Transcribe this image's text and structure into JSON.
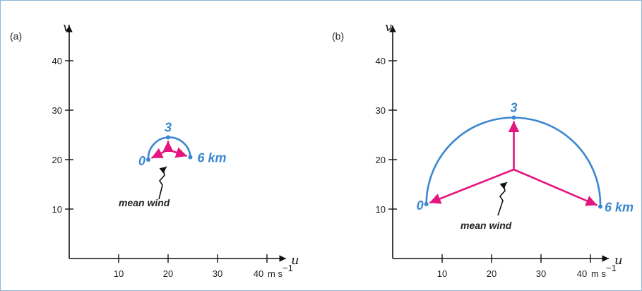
{
  "colors": {
    "hodograph": "#3a87cf",
    "shear_vector": "#e5157f",
    "axis": "#111111",
    "frame": "#8fb6d9"
  },
  "chart_data": [
    {
      "type": "hodograph",
      "panel_label": "(a)",
      "xaxis_letter": "u",
      "yaxis_letter": "v",
      "x_ticks": [
        "10",
        "20",
        "30",
        "40"
      ],
      "x_unit": "m s",
      "x_unit_exp": "−1",
      "y_ticks": [
        "10",
        "20",
        "30",
        "40"
      ],
      "xlim": [
        0,
        42
      ],
      "ylim": [
        0,
        47
      ],
      "hodograph_points": [
        {
          "label": "0",
          "u": 16,
          "v": 20
        },
        {
          "label": "3",
          "u": 20,
          "v": 24.5
        },
        {
          "label": "6 km",
          "u": 24.5,
          "v": 20.5
        }
      ],
      "mean_wind": {
        "u": 20,
        "v": 22
      },
      "annotation": "mean wind"
    },
    {
      "type": "hodograph",
      "panel_label": "(b)",
      "xaxis_letter": "u",
      "yaxis_letter": "v",
      "x_ticks": [
        "10",
        "20",
        "30",
        "40"
      ],
      "x_unit": "m s",
      "x_unit_exp": "−1",
      "y_ticks": [
        "10",
        "20",
        "30",
        "40"
      ],
      "xlim": [
        0,
        45
      ],
      "ylim": [
        0,
        47
      ],
      "hodograph_points": [
        {
          "label": "0",
          "u": 6.8,
          "v": 11
        },
        {
          "label": "3",
          "u": 24.5,
          "v": 28.5
        },
        {
          "label": "6 km",
          "u": 42,
          "v": 10.5
        }
      ],
      "mean_wind": {
        "u": 24.5,
        "v": 18
      },
      "annotation": "mean wind"
    }
  ]
}
